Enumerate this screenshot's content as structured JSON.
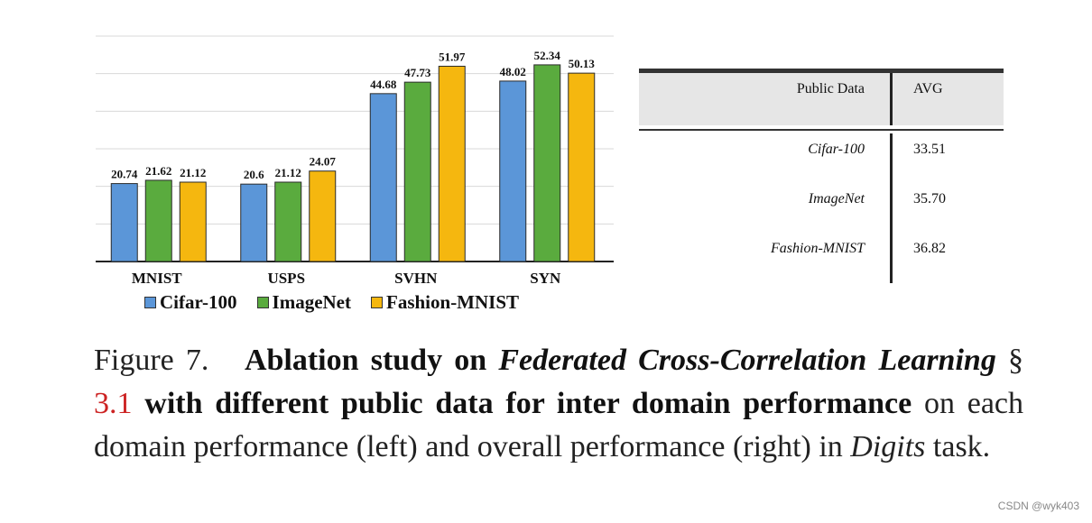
{
  "chart_data": {
    "type": "bar",
    "categories": [
      "MNIST",
      "USPS",
      "SVHN",
      "SYN"
    ],
    "series": [
      {
        "name": "Cifar-100",
        "values": [
          20.74,
          20.6,
          44.68,
          48.02
        ],
        "labels": [
          "20.74",
          "20.6",
          "44.68",
          "48.02"
        ],
        "color": "#5b96d8"
      },
      {
        "name": "ImageNet",
        "values": [
          21.62,
          21.12,
          47.73,
          52.34
        ],
        "labels": [
          "21.62",
          "21.12",
          "47.73",
          "52.34"
        ],
        "color": "#5aab3e"
      },
      {
        "name": "Fashion-MNIST",
        "values": [
          21.12,
          24.07,
          51.97,
          50.13
        ],
        "labels": [
          "21.12",
          "24.07",
          "51.97",
          "50.13"
        ],
        "color": "#f5b70f"
      }
    ],
    "ylim": [
      0,
      60
    ],
    "grid": true,
    "legend": "bottom"
  },
  "table": {
    "headers": [
      "Public Data",
      "AVG"
    ],
    "rows": [
      {
        "name": "Cifar-100",
        "value": "33.51"
      },
      {
        "name": "ImageNet",
        "value": "35.70"
      },
      {
        "name": "Fashion-MNIST",
        "value": "36.82"
      }
    ]
  },
  "caption": {
    "fig_label": "Figure 7.",
    "bold_1": "Ablation study on",
    "bold_italic_1": "Federated Cross-Correlation Learning",
    "section_sign": "§",
    "ref": "3.1",
    "bold_2": "with different public data for inter domain performance",
    "normal_1": "on each domain performance (left) and overall performance (right) in",
    "italic_1": "Digits",
    "normal_2": "task."
  },
  "watermark": "CSDN @wyk403"
}
